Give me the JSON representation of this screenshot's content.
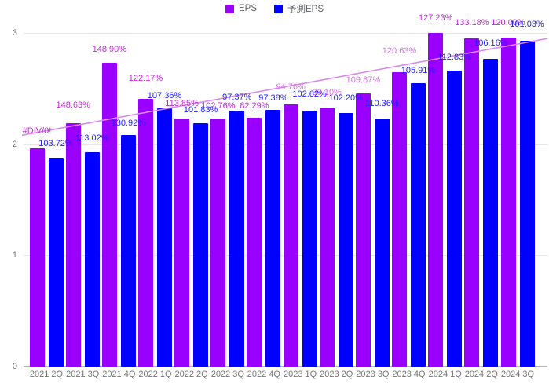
{
  "chart_data": {
    "type": "bar",
    "title": "",
    "xlabel": "",
    "ylabel": "",
    "categories": [
      "2021 2Q",
      "2021 3Q",
      "2021 4Q",
      "2022 1Q",
      "2022 2Q",
      "2022 3Q",
      "2022 4Q",
      "2023 1Q",
      "2023 2Q",
      "2023 3Q",
      "2023 4Q",
      "2024 1Q",
      "2024 2Q",
      "2024 3Q"
    ],
    "series": [
      {
        "name": "EPS",
        "color": "#9900ff",
        "label_color": "#bf29d6",
        "values": [
          1.96,
          2.19,
          2.73,
          2.41,
          2.23,
          2.23,
          2.24,
          2.36,
          2.33,
          2.46,
          2.65,
          3.0,
          2.95,
          2.96
        ],
        "labels": [
          "#DIV/0!",
          "148.63%",
          "148.90%",
          "122.17%",
          "113.85%",
          "102.76%",
          "82.29%",
          "94.76%",
          "99.10%",
          "109.87%",
          "120.63%",
          "127.23%",
          "133.18%",
          "120.00%"
        ]
      },
      {
        "name": "予測EPS",
        "color": "#0000ff",
        "label_color": "#2020ff",
        "values": [
          1.88,
          1.93,
          2.08,
          2.32,
          2.19,
          2.3,
          2.31,
          2.3,
          2.28,
          2.23,
          2.55,
          2.66,
          2.77,
          2.93
        ],
        "labels": [
          "103.72%",
          "113.02%",
          "130.92%",
          "107.36%",
          "101.83%",
          "97.37%",
          "97.38%",
          "102.62%",
          "102.20%",
          "110.36%",
          "105.91%",
          "112.83%",
          "106.16%",
          "101.03%"
        ]
      }
    ],
    "light_label_indices": [
      7,
      8,
      9,
      10
    ],
    "light_label_color": "#d873e8",
    "trendline": {
      "color": "#d78ae9",
      "start_value": 2.08,
      "end_value": 2.95
    },
    "y_axis": {
      "min": 0,
      "max": 3,
      "ticks": [
        0,
        1,
        2,
        3
      ]
    },
    "grid": true,
    "legend_position": "top",
    "label_offsets": {
      "eps": [
        16,
        17,
        11,
        20,
        13,
        10,
        9,
        16,
        13,
        11,
        21,
        13,
        14,
        13
      ],
      "forecast": [
        12,
        12,
        9,
        10,
        11,
        11,
        9,
        15,
        13,
        13,
        10,
        11,
        14,
        15
      ]
    }
  },
  "axis_colors": {
    "tick_text": "#757575",
    "gridline": "#e6e6e6",
    "baseline": "#b5b5b5"
  }
}
